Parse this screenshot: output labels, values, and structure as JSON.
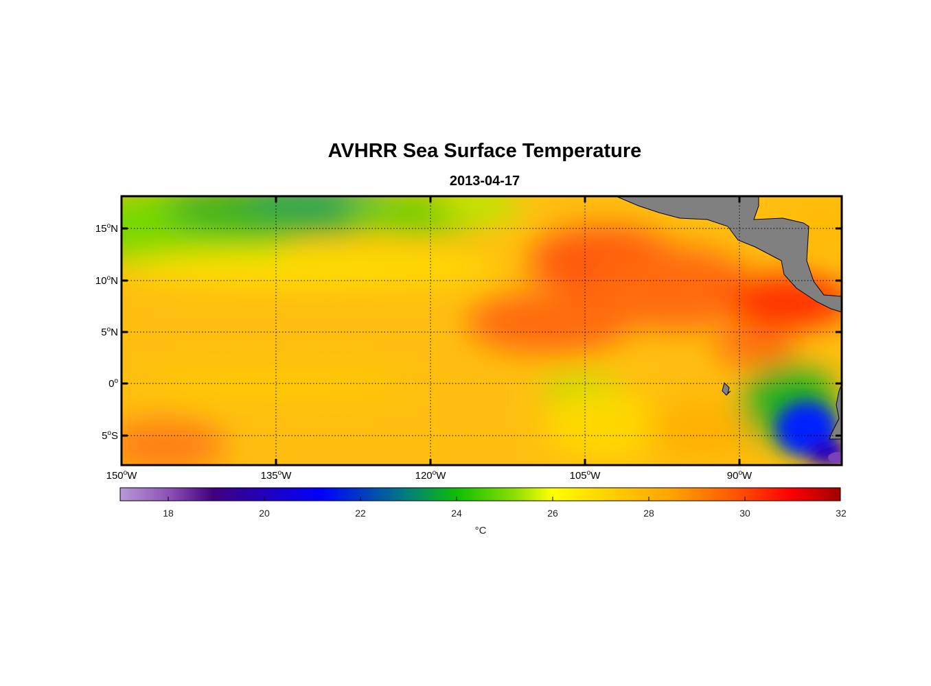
{
  "header": {
    "title": "AVHRR Sea Surface Temperature",
    "subtitle": "2013-04-17"
  },
  "axes": {
    "y_labels": [
      {
        "deg": "15",
        "hem": "N",
        "lat": 15
      },
      {
        "deg": "10",
        "hem": "N",
        "lat": 10
      },
      {
        "deg": "5",
        "hem": "N",
        "lat": 5
      },
      {
        "deg": "0",
        "hem": "",
        "lat": 0
      },
      {
        "deg": "5",
        "hem": "S",
        "lat": -5
      }
    ],
    "x_labels": [
      {
        "deg": "150",
        "hem": "W",
        "lon": -150
      },
      {
        "deg": "135",
        "hem": "W",
        "lon": -135
      },
      {
        "deg": "120",
        "hem": "W",
        "lon": -120
      },
      {
        "deg": "105",
        "hem": "W",
        "lon": -105
      },
      {
        "deg": "90",
        "hem": "W",
        "lon": -90
      }
    ],
    "lon_range": [
      -150,
      -80
    ],
    "lat_range": [
      -8,
      18
    ],
    "grid": "dotted"
  },
  "colorbar": {
    "unit": "°C",
    "range": [
      17,
      32
    ],
    "ticks": [
      "18",
      "20",
      "22",
      "24",
      "26",
      "28",
      "30",
      "32"
    ]
  },
  "colors": {
    "land": "#808080",
    "frame": "#000000"
  }
}
